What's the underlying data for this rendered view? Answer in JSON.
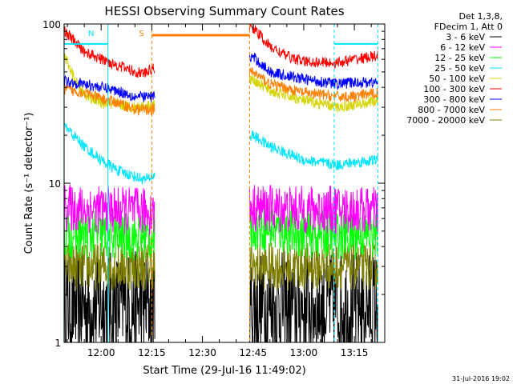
{
  "chart_data": {
    "type": "line",
    "title": "HESSI Observing Summary Count Rates",
    "xlabel": "Start Time (29-Jul-16 11:49:02)",
    "ylabel": "Count Rate (s⁻¹ detector⁻¹)",
    "x_ticks": [
      "12:00",
      "12:15",
      "12:30",
      "12:45",
      "13:00",
      "13:15"
    ],
    "y_ticks": [
      "1",
      "10",
      "100"
    ],
    "y_scale": "log",
    "ylim": [
      1,
      100
    ],
    "xlim": [
      "11:49:02",
      "13:24:00"
    ],
    "legend_header": [
      "Det 1,3,8,",
      "FDecim 1, Att 0"
    ],
    "legend_position": "top-right",
    "footer_date": "31-Jul-2016 19:02",
    "flags": [
      {
        "label": "N",
        "color": "#00e5ff",
        "from": "11:49",
        "to": "12:02"
      },
      {
        "label": "S",
        "color": "#ff7f00",
        "from": "12:15",
        "to": "12:44"
      },
      {
        "label": "",
        "color": "#00e5ff",
        "from": "13:09",
        "to": "13:22"
      }
    ],
    "gaps": [
      [
        "12:16",
        "12:44"
      ]
    ],
    "series": [
      {
        "name": "3 - 6 keV",
        "color": "#000000",
        "points": [
          [
            "11:49",
            1.7
          ],
          [
            "12:00",
            1.7
          ],
          [
            "12:10",
            1.7
          ],
          [
            "12:15",
            1.7
          ],
          [
            "12:45",
            1.7
          ],
          [
            "13:00",
            1.7
          ],
          [
            "13:15",
            1.7
          ],
          [
            "13:22",
            1.7
          ]
        ]
      },
      {
        "name": "6 - 12 keV",
        "color": "#ff00ff",
        "points": [
          [
            "11:49",
            7.0
          ],
          [
            "12:00",
            6.8
          ],
          [
            "12:10",
            6.7
          ],
          [
            "12:15",
            6.6
          ],
          [
            "12:45",
            7.0
          ],
          [
            "13:00",
            6.8
          ],
          [
            "13:15",
            6.8
          ],
          [
            "13:22",
            6.7
          ]
        ]
      },
      {
        "name": "12 - 25 keV",
        "color": "#00ff00",
        "points": [
          [
            "11:49",
            4.8
          ],
          [
            "12:00",
            4.7
          ],
          [
            "12:10",
            4.6
          ],
          [
            "12:15",
            4.6
          ],
          [
            "12:45",
            5.4
          ],
          [
            "13:00",
            4.8
          ],
          [
            "13:15",
            4.7
          ],
          [
            "13:22",
            4.7
          ]
        ]
      },
      {
        "name": "25 - 50 keV",
        "color": "#00e5ff",
        "points": [
          [
            "11:49",
            23
          ],
          [
            "11:55",
            17
          ],
          [
            "12:00",
            14
          ],
          [
            "12:05",
            12
          ],
          [
            "12:10",
            11
          ],
          [
            "12:13",
            10.5
          ],
          [
            "12:15",
            11
          ],
          [
            "12:45",
            20
          ],
          [
            "12:50",
            17
          ],
          [
            "13:00",
            14
          ],
          [
            "13:10",
            13
          ],
          [
            "13:15",
            13.5
          ],
          [
            "13:22",
            14
          ]
        ]
      },
      {
        "name": "50 - 100 keV",
        "color": "#d4d400",
        "points": [
          [
            "11:49",
            65
          ],
          [
            "11:52",
            45
          ],
          [
            "11:55",
            36
          ],
          [
            "12:00",
            32
          ],
          [
            "12:10",
            30
          ],
          [
            "12:15",
            31
          ],
          [
            "12:45",
            45
          ],
          [
            "12:50",
            38
          ],
          [
            "13:00",
            33
          ],
          [
            "13:10",
            30
          ],
          [
            "13:15",
            31
          ],
          [
            "13:22",
            33
          ]
        ]
      },
      {
        "name": "100 - 300 keV",
        "color": "#ff0000",
        "points": [
          [
            "11:49",
            92
          ],
          [
            "11:52",
            78
          ],
          [
            "11:55",
            67
          ],
          [
            "12:00",
            60
          ],
          [
            "12:05",
            55
          ],
          [
            "12:10",
            50
          ],
          [
            "12:13",
            49
          ],
          [
            "12:15",
            52
          ],
          [
            "12:45",
            95
          ],
          [
            "12:50",
            72
          ],
          [
            "12:55",
            63
          ],
          [
            "13:00",
            58
          ],
          [
            "13:10",
            57
          ],
          [
            "13:15",
            60
          ],
          [
            "13:22",
            63
          ]
        ]
      },
      {
        "name": "300 - 800 keV",
        "color": "#0000ff",
        "points": [
          [
            "11:49",
            44
          ],
          [
            "11:55",
            42
          ],
          [
            "12:00",
            40
          ],
          [
            "12:05",
            38
          ],
          [
            "12:10",
            35
          ],
          [
            "12:15",
            35
          ],
          [
            "12:45",
            62
          ],
          [
            "12:50",
            50
          ],
          [
            "13:00",
            45
          ],
          [
            "13:10",
            42
          ],
          [
            "13:15",
            43
          ],
          [
            "13:22",
            43
          ]
        ]
      },
      {
        "name": "800 - 7000 keV",
        "color": "#ff7f00",
        "points": [
          [
            "11:49",
            39
          ],
          [
            "11:55",
            37
          ],
          [
            "12:00",
            34
          ],
          [
            "12:05",
            32
          ],
          [
            "12:10",
            29
          ],
          [
            "12:15",
            29
          ],
          [
            "12:45",
            50
          ],
          [
            "12:50",
            42
          ],
          [
            "13:00",
            37
          ],
          [
            "13:10",
            35
          ],
          [
            "13:15",
            35
          ],
          [
            "13:22",
            37
          ]
        ]
      },
      {
        "name": "7000 - 20000 keV",
        "color": "#808000",
        "points": [
          [
            "11:49",
            3.0
          ],
          [
            "12:00",
            3.0
          ],
          [
            "12:10",
            3.0
          ],
          [
            "12:15",
            3.0
          ],
          [
            "12:45",
            3.0
          ],
          [
            "13:00",
            3.0
          ],
          [
            "13:15",
            3.0
          ],
          [
            "13:22",
            3.0
          ]
        ]
      }
    ]
  }
}
